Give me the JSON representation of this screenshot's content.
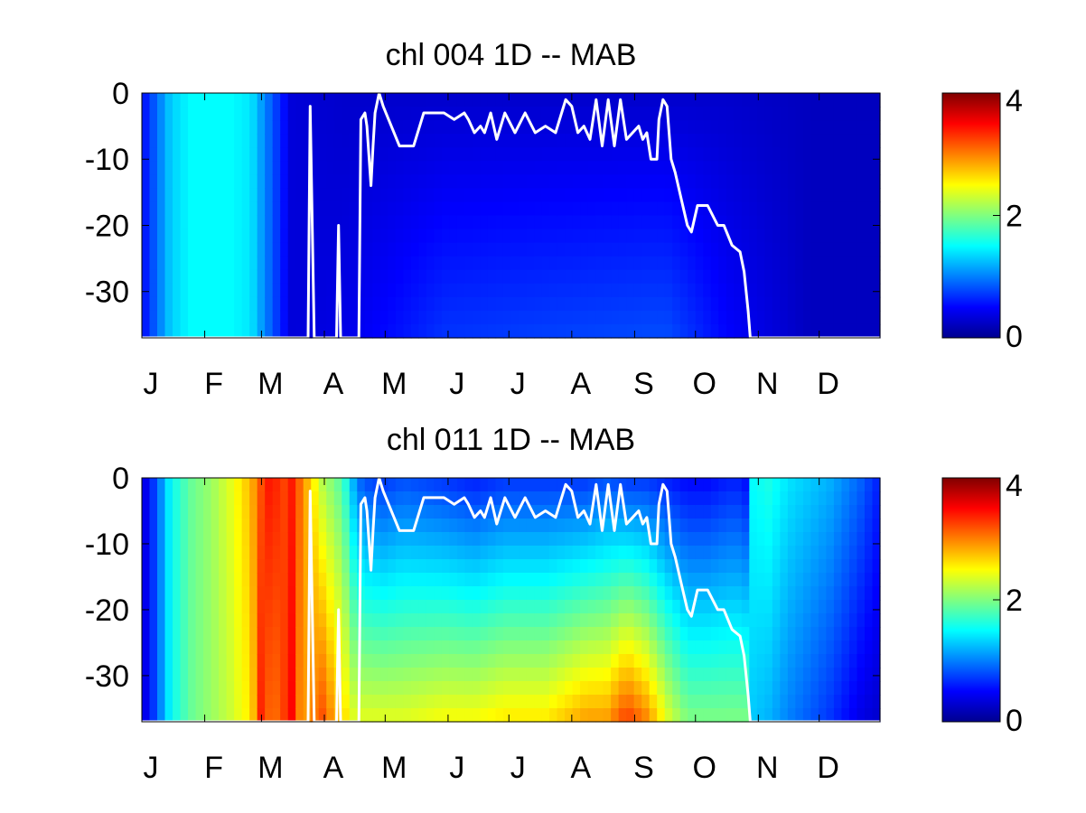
{
  "figure": {
    "panels": [
      {
        "title": "chl  004 1D   -- MAB",
        "y_ticks": [
          "0",
          "-10",
          "-20",
          "-30"
        ],
        "x_ticks": [
          "J",
          "F",
          "M",
          "A",
          "M",
          "J",
          "J",
          "A",
          "S",
          "O",
          "N",
          "D"
        ],
        "colorbar_ticks": [
          "4",
          "2",
          "0"
        ]
      },
      {
        "title": "chl  011 1D   -- MAB",
        "y_ticks": [
          "0",
          "-10",
          "-20",
          "-30"
        ],
        "x_ticks": [
          "J",
          "F",
          "M",
          "A",
          "M",
          "J",
          "J",
          "A",
          "S",
          "O",
          "N",
          "D"
        ],
        "colorbar_ticks": [
          "4",
          "2",
          "0"
        ]
      }
    ]
  },
  "colors": {
    "colormap": "jet",
    "mixed_layer_line": "#ffffff",
    "background": "#ffffff"
  },
  "chart_data": [
    {
      "type": "heatmap",
      "title": "chl  004 1D   -- MAB",
      "xlabel": "",
      "ylabel": "",
      "x_range": [
        1,
        365
      ],
      "y_range": [
        -37,
        0
      ],
      "color_range": [
        0,
        4
      ],
      "colormap": "jet",
      "x_ticks": [
        {
          "day": 1,
          "label": "J"
        },
        {
          "day": 32,
          "label": "F"
        },
        {
          "day": 60,
          "label": "M"
        },
        {
          "day": 91,
          "label": "A"
        },
        {
          "day": 121,
          "label": "M"
        },
        {
          "day": 152,
          "label": "J"
        },
        {
          "day": 182,
          "label": "J"
        },
        {
          "day": 213,
          "label": "A"
        },
        {
          "day": 244,
          "label": "S"
        },
        {
          "day": 274,
          "label": "O"
        },
        {
          "day": 305,
          "label": "N"
        },
        {
          "day": 335,
          "label": "D"
        }
      ],
      "y_ticks": [
        0,
        -10,
        -20,
        -30
      ],
      "colorbar_ticks": [
        0,
        2,
        4
      ],
      "depth_profile_days": [
        1,
        8,
        15,
        25,
        45,
        55,
        62,
        75,
        100,
        150,
        200,
        260,
        290,
        330,
        365
      ],
      "surface_chl": [
        0.5,
        0.9,
        1.3,
        1.5,
        1.5,
        1.4,
        1.0,
        0.35,
        0.3,
        0.3,
        0.3,
        0.3,
        0.3,
        0.25,
        0.25
      ],
      "bottom_chl": [
        0.5,
        0.9,
        1.3,
        1.5,
        1.5,
        1.4,
        1.0,
        0.35,
        0.4,
        0.7,
        0.75,
        0.8,
        0.5,
        0.25,
        0.25
      ],
      "mixed_layer_depth": {
        "day": [
          1,
          83,
          84,
          86,
          87,
          89,
          90,
          97,
          98,
          99,
          100,
          101,
          103,
          104,
          105,
          107,
          108,
          109,
          111,
          112,
          114,
          115,
          116,
          118,
          120,
          128,
          132,
          135,
          140,
          145,
          150,
          155,
          160,
          162,
          165,
          168,
          170,
          173,
          176,
          180,
          185,
          190,
          195,
          200,
          205,
          208,
          210,
          213,
          216,
          219,
          222,
          225,
          228,
          231,
          234,
          237,
          240,
          243,
          246,
          248,
          250,
          252,
          255,
          256,
          258,
          260,
          262,
          264,
          267,
          270,
          272,
          275,
          280,
          285,
          288,
          292,
          296,
          298,
          300,
          301,
          302,
          365
        ],
        "depth": [
          -37,
          -37,
          -2,
          -37,
          -37,
          -37,
          -37,
          -37,
          -20,
          -37,
          -37,
          -37,
          -37,
          -37,
          -37,
          -37,
          -37,
          -4,
          -3,
          -5,
          -14,
          -8,
          -3,
          0,
          -2,
          -8,
          -8,
          -8,
          -3,
          -3,
          -3,
          -4,
          -3,
          -4,
          -6,
          -5,
          -6,
          -3,
          -7,
          -3,
          -6,
          -3,
          -6,
          -5,
          -6,
          -3,
          -1,
          -2,
          -6,
          -5,
          -7,
          -1,
          -8,
          -1,
          -8,
          -1,
          -7,
          -6,
          -5,
          -7,
          -6,
          -10,
          -10,
          -4,
          -1,
          -2,
          -10,
          -12,
          -16,
          -20,
          -21,
          -17,
          -17,
          -20,
          -20,
          -23,
          -24,
          -27,
          -33,
          -37,
          -37,
          -37
        ]
      }
    },
    {
      "type": "heatmap",
      "title": "chl  011 1D   -- MAB",
      "xlabel": "",
      "ylabel": "",
      "x_range": [
        1,
        365
      ],
      "y_range": [
        -37,
        0
      ],
      "color_range": [
        0,
        4
      ],
      "colormap": "jet",
      "x_ticks": [
        {
          "day": 1,
          "label": "J"
        },
        {
          "day": 32,
          "label": "F"
        },
        {
          "day": 60,
          "label": "M"
        },
        {
          "day": 91,
          "label": "A"
        },
        {
          "day": 121,
          "label": "M"
        },
        {
          "day": 152,
          "label": "J"
        },
        {
          "day": 182,
          "label": "J"
        },
        {
          "day": 213,
          "label": "A"
        },
        {
          "day": 244,
          "label": "S"
        },
        {
          "day": 274,
          "label": "O"
        },
        {
          "day": 305,
          "label": "N"
        },
        {
          "day": 335,
          "label": "D"
        }
      ],
      "y_ticks": [
        0,
        -10,
        -20,
        -30
      ],
      "colorbar_ticks": [
        0,
        2,
        4
      ],
      "depth_profile_days": [
        1,
        8,
        15,
        25,
        35,
        45,
        55,
        60,
        65,
        70,
        75,
        80,
        85,
        90,
        95,
        100,
        105,
        110,
        120,
        130,
        150,
        165,
        180,
        200,
        220,
        230,
        240,
        250,
        260,
        270,
        280,
        290,
        295,
        300,
        301,
        310,
        320,
        340,
        355,
        365
      ],
      "surface_chl": [
        0.3,
        0.8,
        1.5,
        1.9,
        2.1,
        2.4,
        2.8,
        3.2,
        3.5,
        3.2,
        3.4,
        3.0,
        2.6,
        2.2,
        2.0,
        1.8,
        1.2,
        0.8,
        0.7,
        0.8,
        0.7,
        0.6,
        0.7,
        0.7,
        0.7,
        0.8,
        0.7,
        0.7,
        0.6,
        0.5,
        0.5,
        0.6,
        0.6,
        0.5,
        1.5,
        1.6,
        1.4,
        1.2,
        0.9,
        0.6
      ],
      "bottom_chl": [
        0.3,
        0.8,
        1.5,
        1.9,
        2.1,
        2.3,
        2.6,
        3.4,
        3.0,
        3.2,
        3.5,
        2.8,
        3.0,
        3.2,
        2.9,
        2.7,
        2.4,
        2.4,
        2.4,
        2.4,
        2.5,
        2.5,
        2.6,
        2.6,
        2.9,
        2.9,
        3.3,
        3.0,
        2.4,
        2.0,
        2.0,
        2.0,
        2.0,
        2.0,
        1.3,
        1.2,
        1.0,
        0.7,
        0.4,
        0.3
      ]
    }
  ]
}
